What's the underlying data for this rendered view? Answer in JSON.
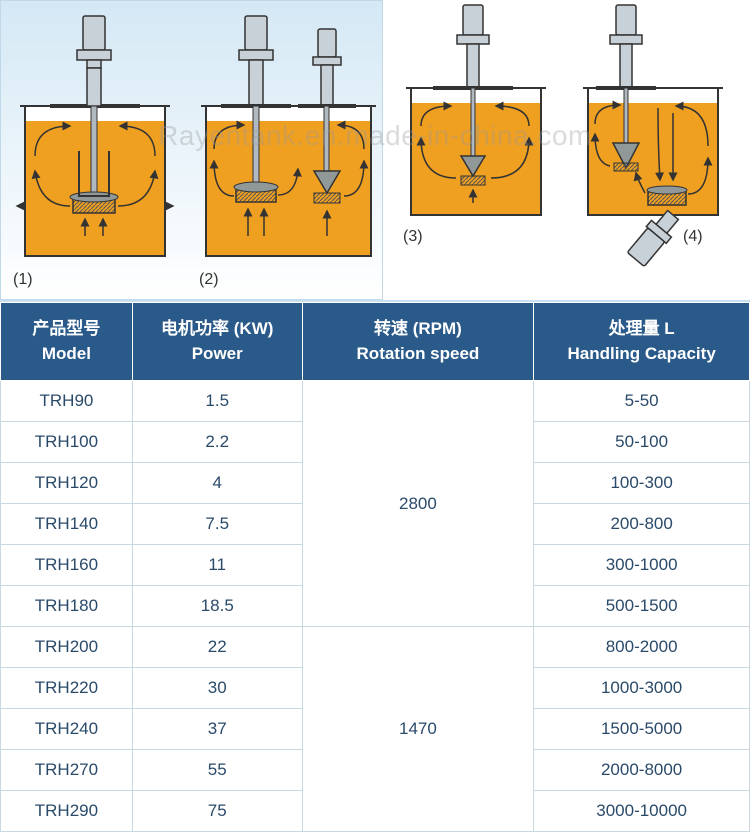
{
  "watermark": "Rayentank.en.made-in-china.com",
  "diagrams": {
    "labels": [
      "(1)",
      "(2)",
      "(3)",
      "(4)"
    ]
  },
  "table": {
    "headers": {
      "model": {
        "cn": "产品型号",
        "en": "Model"
      },
      "power": {
        "cn": "电机功率 (KW)",
        "en": "Power"
      },
      "speed": {
        "cn": "转速 (RPM)",
        "en": "Rotation speed"
      },
      "capacity": {
        "cn": "处理量 L",
        "en": "Handling Capacity"
      }
    },
    "speed_groups": [
      {
        "value": "2800",
        "rowspan": 6
      },
      {
        "value": "1470",
        "rowspan": 5
      }
    ],
    "rows": [
      {
        "model": "TRH90",
        "power": "1.5",
        "capacity": "5-50",
        "speed_start": 0
      },
      {
        "model": "TRH100",
        "power": "2.2",
        "capacity": "50-100"
      },
      {
        "model": "TRH120",
        "power": "4",
        "capacity": "100-300"
      },
      {
        "model": "TRH140",
        "power": "7.5",
        "capacity": "200-800"
      },
      {
        "model": "TRH160",
        "power": "11",
        "capacity": "300-1000"
      },
      {
        "model": "TRH180",
        "power": "18.5",
        "capacity": "500-1500"
      },
      {
        "model": "TRH200",
        "power": "22",
        "capacity": "800-2000",
        "speed_start": 1
      },
      {
        "model": "TRH220",
        "power": "30",
        "capacity": "1000-3000"
      },
      {
        "model": "TRH240",
        "power": "37",
        "capacity": "1500-5000"
      },
      {
        "model": "TRH270",
        "power": "55",
        "capacity": "2000-8000"
      },
      {
        "model": "TRH290",
        "power": "75",
        "capacity": "3000-10000"
      }
    ]
  },
  "colors": {
    "header_bg": "#2a5a8a",
    "header_text": "#ffffff",
    "cell_text": "#2a4a6a",
    "cell_border": "#c8d8e0",
    "liquid": "#f0a020",
    "motor": "#c8d0d8",
    "panel_bg": "#d4e8f5"
  }
}
